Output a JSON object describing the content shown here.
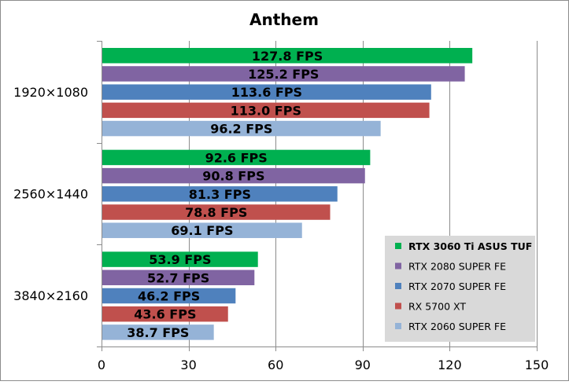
{
  "chart_data": {
    "type": "bar",
    "orientation": "horizontal",
    "title": "Anthem",
    "xlabel": "",
    "ylabel": "",
    "xlim": [
      0,
      150
    ],
    "x_ticks": [
      0,
      30,
      60,
      90,
      120,
      150
    ],
    "grid": true,
    "legend_position": "bottom-right",
    "value_suffix": " FPS",
    "categories": [
      "1920×1080",
      "2560×1440",
      "3840×2160"
    ],
    "series": [
      {
        "name": "RTX 3060 Ti ASUS TUF",
        "color": "#00b050",
        "bold": true,
        "values": [
          127.8,
          92.6,
          53.9
        ]
      },
      {
        "name": "RTX 2080 SUPER FE",
        "color": "#8064a2",
        "bold": false,
        "values": [
          125.2,
          90.8,
          52.7
        ]
      },
      {
        "name": "RTX 2070 SUPER FE",
        "color": "#4f81bd",
        "bold": false,
        "values": [
          113.6,
          81.3,
          46.2
        ]
      },
      {
        "name": "RX 5700 XT",
        "color": "#c0504d",
        "bold": false,
        "values": [
          113.0,
          78.8,
          43.6
        ]
      },
      {
        "name": "RTX 2060 SUPER FE",
        "color": "#95b3d7",
        "bold": false,
        "values": [
          96.2,
          69.1,
          38.7
        ]
      }
    ]
  }
}
